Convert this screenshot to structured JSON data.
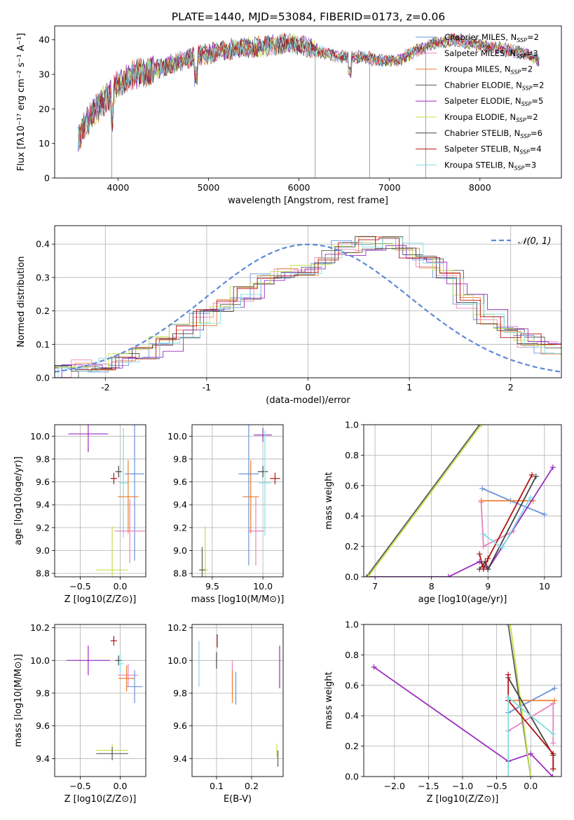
{
  "figure": {
    "title": "PLATE=1440, MJD=53084, FIBERID=0173, z=0.06"
  },
  "colors": {
    "chabrier_miles": "#6a93d8",
    "salpeter_miles": "#e884c0",
    "kroupa_miles": "#ec7c2d",
    "chabrier_elodie": "#5a5a5a",
    "salpeter_elodie": "#9a2bc0",
    "kroupa_elodie": "#c6e04c",
    "chabrier_stelib": "#444444",
    "salpeter_stelib": "#b41414",
    "kroupa_stelib": "#82dde4",
    "normal_curve": "#5f8ad6"
  },
  "legend": [
    {
      "label": "Chabrier MILES, N",
      "sub": "SSP",
      "tail": "=2",
      "color_key": "chabrier_miles"
    },
    {
      "label": "Salpeter MILES, N",
      "sub": "SSP",
      "tail": "=3",
      "color_key": "salpeter_miles"
    },
    {
      "label": "Kroupa MILES, N",
      "sub": "SSP",
      "tail": "=2",
      "color_key": "kroupa_miles"
    },
    {
      "label": "Chabrier ELODIE, N",
      "sub": "SSP",
      "tail": "=2",
      "color_key": "chabrier_elodie"
    },
    {
      "label": "Salpeter ELODIE, N",
      "sub": "SSP",
      "tail": "=5",
      "color_key": "salpeter_elodie"
    },
    {
      "label": "Kroupa ELODIE, N",
      "sub": "SSP",
      "tail": "=2",
      "color_key": "kroupa_elodie"
    },
    {
      "label": "Chabrier STELIB, N",
      "sub": "SSP",
      "tail": "=6",
      "color_key": "chabrier_stelib"
    },
    {
      "label": "Salpeter STELIB, N",
      "sub": "SSP",
      "tail": "=4",
      "color_key": "salpeter_stelib"
    },
    {
      "label": "Kroupa STELIB, N",
      "sub": "SSP",
      "tail": "=3",
      "color_key": "kroupa_stelib"
    }
  ],
  "chart_data": [
    {
      "id": "spectrum",
      "type": "line",
      "xlabel": "wavelength [Angstrom, rest frame]",
      "ylabel": "Flux [fλ10⁻¹⁷ erg cm⁻² s⁻¹ A⁻¹]",
      "xlim": [
        3300,
        8900
      ],
      "ylim": [
        0,
        44
      ],
      "xticks": [
        4000,
        5000,
        6000,
        7000,
        8000
      ],
      "yticks": [
        0,
        10,
        20,
        30,
        40
      ],
      "grid": false,
      "legend_position": "right",
      "continuum_x": [
        3560,
        3700,
        3900,
        4000,
        4200,
        4500,
        4800,
        5000,
        5300,
        5600,
        5900,
        6100,
        6300,
        6500,
        6700,
        6900,
        7100,
        7300,
        7500,
        7700,
        7900,
        8100,
        8300,
        8500,
        8660
      ],
      "continuum_y": [
        11,
        18,
        24,
        27,
        30,
        32,
        35,
        36,
        37.5,
        38,
        39,
        38,
        36,
        35,
        35,
        34,
        34,
        37,
        39,
        40,
        39,
        38,
        37,
        36,
        34
      ]
    },
    {
      "id": "residuals",
      "type": "histogram",
      "xlabel": "(data-model)/error",
      "ylabel": "Normed distribution",
      "xlim": [
        -2.5,
        2.5
      ],
      "ylim": [
        0,
        0.455
      ],
      "xticks": [
        -2,
        -1,
        0,
        1,
        2
      ],
      "yticks": [
        0.0,
        0.1,
        0.2,
        0.3,
        0.4
      ],
      "grid": true,
      "legend": "𝒩(0, 1)",
      "legend_position": "top-right",
      "bin_edges": [
        -2.5,
        -2.3,
        -2.1,
        -1.9,
        -1.7,
        -1.5,
        -1.3,
        -1.1,
        -0.9,
        -0.7,
        -0.5,
        -0.3,
        -0.1,
        0.1,
        0.3,
        0.5,
        0.7,
        0.9,
        1.1,
        1.3,
        1.5,
        1.7,
        1.9,
        2.1,
        2.3,
        2.5
      ],
      "envelope": [
        0.02,
        0.03,
        0.04,
        0.05,
        0.07,
        0.1,
        0.14,
        0.18,
        0.21,
        0.25,
        0.29,
        0.31,
        0.33,
        0.36,
        0.39,
        0.4,
        0.4,
        0.38,
        0.34,
        0.3,
        0.23,
        0.18,
        0.14,
        0.11,
        0.09
      ],
      "normal_mu": 0,
      "normal_sigma": 1
    },
    {
      "id": "age-vs-Z",
      "type": "errorbar",
      "xlabel": "Z [log10(Z/Z⊙)]",
      "ylabel": "age  [log10(age/yr)]",
      "xlim": [
        -0.82,
        0.32
      ],
      "ylim": [
        8.77,
        10.1
      ],
      "xticks": [
        -0.5,
        0.0
      ],
      "yticks": [
        8.8,
        9.0,
        9.2,
        9.4,
        9.6,
        9.8,
        10.0
      ],
      "grid": true,
      "points": [
        {
          "series": "Salpeter ELODIE",
          "x": -0.4,
          "y": 10.02,
          "xerr": 0.25,
          "yerr": 0.16,
          "color_key": "salpeter_elodie"
        },
        {
          "series": "Kroupa ELODIE",
          "x": -0.1,
          "y": 8.83,
          "xerr": 0.2,
          "yerr": 0.38,
          "color_key": "kroupa_elodie"
        },
        {
          "series": "Salpeter STELIB",
          "x": -0.08,
          "y": 9.63,
          "xerr": 0.04,
          "yerr": 0.05,
          "color_key": "salpeter_stelib"
        },
        {
          "series": "Chabrier STELIB",
          "x": -0.02,
          "y": 9.69,
          "xerr": 0.04,
          "yerr": 0.05,
          "color_key": "chabrier_stelib"
        },
        {
          "series": "Chabrier MILES",
          "x": 0.18,
          "y": 9.67,
          "xerr": 0.12,
          "yerr": 0.76,
          "color_key": "chabrier_miles"
        },
        {
          "series": "Kroupa STELIB",
          "x": 0.04,
          "y": 9.59,
          "xerr": 0.05,
          "yerr": 0.48,
          "color_key": "kroupa_stelib"
        },
        {
          "series": "Kroupa MILES",
          "x": 0.1,
          "y": 9.47,
          "xerr": 0.13,
          "yerr": 0.32,
          "color_key": "kroupa_miles"
        },
        {
          "series": "Salpeter MILES",
          "x": 0.12,
          "y": 9.17,
          "xerr": 0.19,
          "yerr": 0.28,
          "color_key": "salpeter_miles"
        }
      ]
    },
    {
      "id": "age-vs-mass",
      "type": "errorbar",
      "xlabel": "mass [log10(M/M⊙)]",
      "ylabel": "",
      "xlim": [
        9.3,
        10.2
      ],
      "ylim": [
        8.77,
        10.1
      ],
      "xticks": [
        9.5,
        10.0
      ],
      "yticks": [
        8.8,
        9.0,
        9.2,
        9.4,
        9.6,
        9.8,
        10.0
      ],
      "grid": true,
      "points": [
        {
          "series": "Salpeter ELODIE",
          "x": 10.0,
          "y": 10.01,
          "xerr": 0.09,
          "yerr": 0.06,
          "color_key": "salpeter_elodie"
        },
        {
          "series": "Kroupa ELODIE",
          "x": 9.43,
          "y": 8.83,
          "xerr": 0.03,
          "yerr": 0.38,
          "color_key": "kroupa_elodie"
        },
        {
          "series": "Chabrier ELODIE",
          "x": 9.4,
          "y": 8.83,
          "xerr": 0.03,
          "yerr": 0.2,
          "color_key": "chabrier_elodie"
        },
        {
          "series": "Salpeter STELIB",
          "x": 10.12,
          "y": 9.63,
          "xerr": 0.05,
          "yerr": 0.05,
          "color_key": "salpeter_stelib"
        },
        {
          "series": "Chabrier STELIB",
          "x": 10.0,
          "y": 9.69,
          "xerr": 0.05,
          "yerr": 0.05,
          "color_key": "chabrier_stelib"
        },
        {
          "series": "Chabrier MILES",
          "x": 9.86,
          "y": 9.67,
          "xerr": 0.1,
          "yerr": 0.8,
          "color_key": "chabrier_miles"
        },
        {
          "series": "Kroupa STELIB",
          "x": 10.02,
          "y": 9.59,
          "xerr": 0.06,
          "yerr": 0.46,
          "color_key": "kroupa_stelib"
        },
        {
          "series": "Kroupa MILES",
          "x": 9.88,
          "y": 9.47,
          "xerr": 0.08,
          "yerr": 0.32,
          "color_key": "kroupa_miles"
        },
        {
          "series": "Salpeter MILES",
          "x": 9.93,
          "y": 9.17,
          "xerr": 0.08,
          "yerr": 0.3,
          "color_key": "salpeter_miles"
        }
      ]
    },
    {
      "id": "weight-vs-age",
      "type": "line",
      "xlabel": "age  [log10(age/yr)]",
      "ylabel": "mass weight",
      "xlim": [
        6.8,
        10.3
      ],
      "ylim": [
        0,
        1.0
      ],
      "xticks": [
        7,
        8,
        9,
        10
      ],
      "yticks": [
        0.0,
        0.2,
        0.4,
        0.6,
        0.8,
        1.0
      ],
      "grid": true,
      "series": [
        {
          "name": "Chabrier MILES",
          "color_key": "chabrier_miles",
          "x": [
            8.9,
            9.4,
            10.0
          ],
          "y": [
            0.58,
            0.5,
            0.41
          ]
        },
        {
          "name": "Salpeter MILES",
          "color_key": "salpeter_miles",
          "x": [
            8.88,
            8.92,
            9.45
          ],
          "y": [
            0.49,
            0.2,
            0.3
          ]
        },
        {
          "name": "Kroupa MILES",
          "color_key": "kroupa_miles",
          "x": [
            8.88,
            9.8
          ],
          "y": [
            0.5,
            0.5
          ]
        },
        {
          "name": "Chabrier ELODIE",
          "color_key": "chabrier_elodie",
          "x": [
            6.85,
            8.85
          ],
          "y": [
            0.0,
            1.0
          ]
        },
        {
          "name": "Salpeter ELODIE",
          "color_key": "salpeter_elodie",
          "x": [
            6.9,
            8.3,
            8.85,
            9.0,
            10.15
          ],
          "y": [
            0.0,
            0.0,
            0.1,
            0.05,
            0.72
          ]
        },
        {
          "name": "Kroupa ELODIE",
          "color_key": "kroupa_elodie",
          "x": [
            6.88,
            8.88
          ],
          "y": [
            0.0,
            1.0
          ]
        },
        {
          "name": "Chabrier STELIB",
          "color_key": "chabrier_stelib",
          "x": [
            8.85,
            8.95,
            9.0,
            9.85
          ],
          "y": [
            0.05,
            0.1,
            0.05,
            0.66
          ]
        },
        {
          "name": "Salpeter STELIB",
          "color_key": "salpeter_stelib",
          "x": [
            8.85,
            8.92,
            9.0,
            9.78
          ],
          "y": [
            0.15,
            0.05,
            0.12,
            0.67
          ]
        },
        {
          "name": "Kroupa STELIB",
          "color_key": "kroupa_stelib",
          "x": [
            8.92,
            9.25,
            9.75
          ],
          "y": [
            0.28,
            0.19,
            0.52
          ]
        }
      ]
    },
    {
      "id": "mass-vs-Z",
      "type": "errorbar",
      "xlabel": "Z [log10(Z/Z⊙)]",
      "ylabel": "mass [log10(M/M⊙)]",
      "xlim": [
        -0.82,
        0.32
      ],
      "ylim": [
        9.29,
        10.22
      ],
      "xticks": [
        -0.5,
        0.0
      ],
      "yticks": [
        9.4,
        9.6,
        9.8,
        10.0,
        10.2
      ],
      "grid": true,
      "points": [
        {
          "series": "Salpeter ELODIE",
          "x": -0.4,
          "y": 10.0,
          "xerr": 0.27,
          "yerr": 0.09,
          "color_key": "salpeter_elodie"
        },
        {
          "series": "Kroupa ELODIE",
          "x": -0.1,
          "y": 9.45,
          "xerr": 0.2,
          "yerr": 0.04,
          "color_key": "kroupa_elodie"
        },
        {
          "series": "Chabrier ELODIE",
          "x": -0.1,
          "y": 9.43,
          "xerr": 0.2,
          "yerr": 0.04,
          "color_key": "chabrier_elodie"
        },
        {
          "series": "Salpeter STELIB",
          "x": -0.08,
          "y": 10.12,
          "xerr": 0.04,
          "yerr": 0.03,
          "color_key": "salpeter_stelib"
        },
        {
          "series": "Chabrier STELIB",
          "x": -0.02,
          "y": 10.0,
          "xerr": 0.04,
          "yerr": 0.03,
          "color_key": "chabrier_stelib"
        },
        {
          "series": "Kroupa STELIB",
          "x": 0.0,
          "y": 9.98,
          "xerr": 0.04,
          "yerr": 0.06,
          "color_key": "kroupa_stelib"
        },
        {
          "series": "Salpeter MILES",
          "x": 0.1,
          "y": 9.91,
          "xerr": 0.13,
          "yerr": 0.07,
          "color_key": "salpeter_miles"
        },
        {
          "series": "Kroupa MILES",
          "x": 0.08,
          "y": 9.89,
          "xerr": 0.1,
          "yerr": 0.08,
          "color_key": "kroupa_miles"
        },
        {
          "series": "Chabrier MILES",
          "x": 0.18,
          "y": 9.84,
          "xerr": 0.1,
          "yerr": 0.1,
          "color_key": "chabrier_miles"
        }
      ]
    },
    {
      "id": "mass-vs-EBV",
      "type": "errorbar",
      "xlabel": "E(B-V)",
      "ylabel": "",
      "xlim": [
        0.03,
        0.29
      ],
      "ylim": [
        9.29,
        10.22
      ],
      "xticks": [
        0.1,
        0.2
      ],
      "yticks": [
        9.4,
        9.6,
        9.8,
        10.0,
        10.2
      ],
      "grid": true,
      "points": [
        {
          "series": "Salpeter ELODIE",
          "x": 0.28,
          "y": 9.96,
          "xerr": 0,
          "yerr": 0.13,
          "color_key": "salpeter_elodie"
        },
        {
          "series": "Kroupa ELODIE",
          "x": 0.272,
          "y": 9.45,
          "xerr": 0,
          "yerr": 0.04,
          "color_key": "kroupa_elodie"
        },
        {
          "series": "Chabrier ELODIE",
          "x": 0.275,
          "y": 9.4,
          "xerr": 0,
          "yerr": 0.05,
          "color_key": "chabrier_elodie"
        },
        {
          "series": "Salpeter STELIB",
          "x": 0.102,
          "y": 10.12,
          "xerr": 0,
          "yerr": 0.04,
          "color_key": "salpeter_stelib"
        },
        {
          "series": "Chabrier STELIB",
          "x": 0.1,
          "y": 10.0,
          "xerr": 0,
          "yerr": 0.05,
          "color_key": "chabrier_stelib"
        },
        {
          "series": "Kroupa STELIB",
          "x": 0.05,
          "y": 9.98,
          "xerr": 0,
          "yerr": 0.14,
          "color_key": "kroupa_stelib"
        },
        {
          "series": "Salpeter MILES",
          "x": 0.145,
          "y": 9.91,
          "xerr": 0,
          "yerr": 0.09,
          "color_key": "salpeter_miles"
        },
        {
          "series": "Kroupa MILES",
          "x": 0.145,
          "y": 9.84,
          "xerr": 0,
          "yerr": 0.1,
          "color_key": "kroupa_miles"
        },
        {
          "series": "Chabrier MILES",
          "x": 0.155,
          "y": 9.83,
          "xerr": 0,
          "yerr": 0.1,
          "color_key": "chabrier_miles"
        }
      ]
    },
    {
      "id": "weight-vs-Z",
      "type": "line",
      "xlabel": "Z [log10(Z/Z⊙)]",
      "ylabel": "mass weight",
      "xlim": [
        -2.45,
        0.45
      ],
      "ylim": [
        0,
        1.0
      ],
      "xticks": [
        -2.0,
        -1.5,
        -1.0,
        -0.5,
        0.0
      ],
      "yticks": [
        0.0,
        0.2,
        0.4,
        0.6,
        0.8,
        1.0
      ],
      "grid": true,
      "series": [
        {
          "name": "Chabrier MILES",
          "color_key": "chabrier_miles",
          "x": [
            -0.33,
            0.35
          ],
          "y": [
            0.42,
            0.58
          ]
        },
        {
          "name": "Salpeter MILES",
          "color_key": "salpeter_miles",
          "x": [
            -0.33,
            0.33,
            0.33
          ],
          "y": [
            0.3,
            0.48,
            0.22
          ]
        },
        {
          "name": "Kroupa MILES",
          "color_key": "kroupa_miles",
          "x": [
            -0.33,
            0.35
          ],
          "y": [
            0.5,
            0.5
          ]
        },
        {
          "name": "Chabrier ELODIE",
          "color_key": "chabrier_elodie",
          "x": [
            -0.33,
            0.0
          ],
          "y": [
            1.0,
            0.0
          ]
        },
        {
          "name": "Salpeter ELODIE",
          "color_key": "salpeter_elodie",
          "x": [
            -2.3,
            -0.33,
            0.0,
            0.32
          ],
          "y": [
            0.72,
            0.1,
            0.15,
            0.0
          ]
        },
        {
          "name": "Kroupa ELODIE",
          "color_key": "kroupa_elodie",
          "x": [
            -0.3,
            0.0
          ],
          "y": [
            1.0,
            0.0
          ]
        },
        {
          "name": "Chabrier STELIB",
          "color_key": "chabrier_stelib",
          "x": [
            -0.33,
            0.33,
            0.33
          ],
          "y": [
            0.65,
            0.14,
            0.05
          ]
        },
        {
          "name": "Salpeter STELIB",
          "color_key": "salpeter_stelib",
          "x": [
            -0.33,
            -0.33,
            0.33,
            0.33
          ],
          "y": [
            0.67,
            0.5,
            0.15,
            0.05
          ]
        },
        {
          "name": "Kroupa STELIB",
          "color_key": "kroupa_stelib",
          "x": [
            -0.33,
            -0.33,
            0.33
          ],
          "y": [
            0.0,
            0.52,
            0.28
          ]
        }
      ]
    }
  ]
}
